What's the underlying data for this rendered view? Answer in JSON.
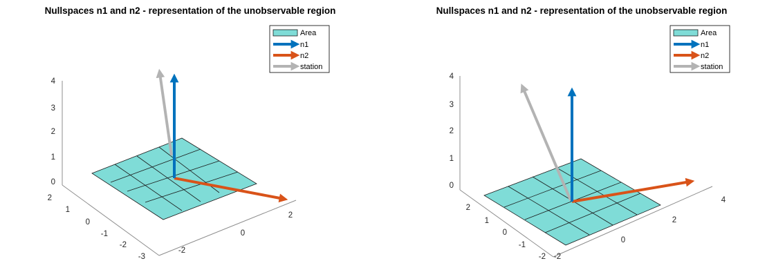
{
  "chart_data": [
    {
      "type": "3d-surface-quiver",
      "title": "Nullspaces n1 and n2 - representation of the unobservable region",
      "area": {
        "x_range": [
          -2,
          2
        ],
        "y_range": [
          -2,
          2
        ],
        "z": 0,
        "grid_step": 1
      },
      "vectors": [
        {
          "name": "n1",
          "origin": [
            0,
            0,
            0
          ],
          "direction": [
            0,
            0,
            4
          ]
        },
        {
          "name": "n2",
          "origin": [
            0,
            0,
            0
          ],
          "direction": [
            3,
            1.5,
            0
          ]
        },
        {
          "name": "station",
          "origin": [
            0,
            0,
            0
          ],
          "direction": [
            -0.3,
            -2.5,
            4
          ]
        }
      ],
      "x_ticks": [
        "-2",
        "0",
        "2"
      ],
      "y_ticks": [
        "2",
        "1",
        "0",
        "-1",
        "-2",
        "-3"
      ],
      "z_ticks": [
        "4",
        "3",
        "2",
        "1",
        "0"
      ],
      "xlim": [
        -3,
        3
      ],
      "ylim": [
        -3,
        2
      ],
      "zlim": [
        0,
        4
      ],
      "legend": {
        "position": "top-right",
        "entries": [
          "Area",
          "n1",
          "n2",
          "station"
        ]
      },
      "grid": false
    },
    {
      "type": "3d-surface-quiver",
      "title": "Nullspaces n1 and n2 - representation of the unobservable region",
      "area": {
        "x_range": [
          -2,
          2
        ],
        "y_range": [
          -2,
          2
        ],
        "z": 0,
        "grid_step": 1
      },
      "vectors": [
        {
          "name": "n1",
          "origin": [
            0,
            0,
            0
          ],
          "direction": [
            0,
            0,
            3.5
          ]
        },
        {
          "name": "n2",
          "origin": [
            0,
            0,
            0
          ],
          "direction": [
            4,
            1.5,
            0
          ]
        },
        {
          "name": "station",
          "origin": [
            0,
            0,
            0
          ],
          "direction": [
            -2,
            2.2,
            3.5
          ]
        }
      ],
      "x_ticks": [
        "-2",
        "0",
        "2",
        "4"
      ],
      "y_ticks": [
        "2",
        "1",
        "0",
        "-1",
        "-2"
      ],
      "z_ticks": [
        "4",
        "3",
        "2",
        "1",
        "0"
      ],
      "xlim": [
        -2,
        4
      ],
      "ylim": [
        -2,
        2
      ],
      "zlim": [
        0,
        4
      ],
      "legend": {
        "position": "top-right",
        "entries": [
          "Area",
          "n1",
          "n2",
          "station"
        ]
      },
      "grid": false
    }
  ],
  "colors": {
    "area_fill": "#7fdcd7",
    "area_edge": "#1a1a1a",
    "n1": "#0072bd",
    "n2": "#d95319",
    "station": "#b3b3b3",
    "axis": "#8c8c8c"
  }
}
